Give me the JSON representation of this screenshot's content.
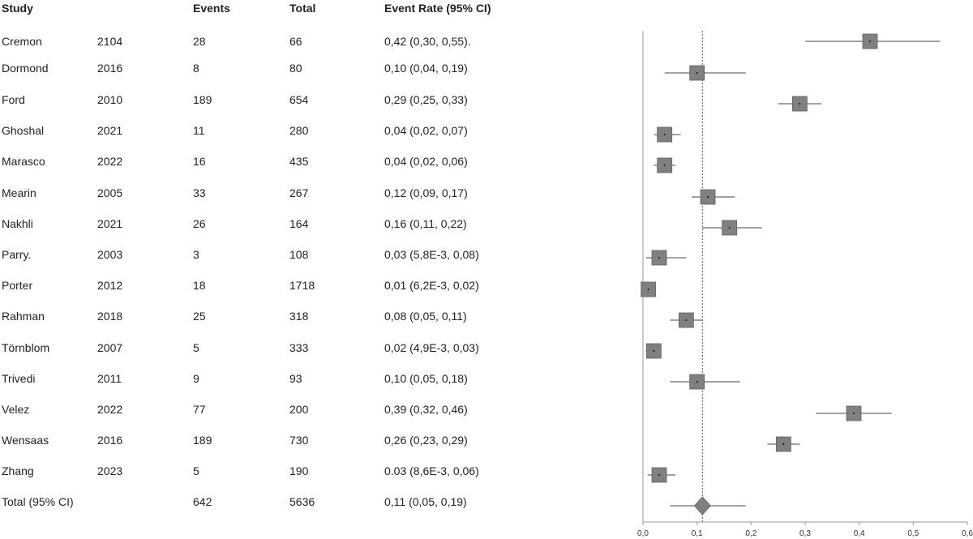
{
  "headers": {
    "study": "Study",
    "events": "Events",
    "total": "Total",
    "ci": "Event Rate (95% CI)"
  },
  "rows": [
    {
      "study": "Cremon",
      "year": "2104",
      "events": "28",
      "total": "66",
      "ci": "0,42 (0,30, 0,55)."
    },
    {
      "study": "Dormond",
      "year": "2016",
      "events": "8",
      "total": "80",
      "ci": "0,10 (0,04, 0,19)"
    },
    {
      "study": "Ford",
      "year": "2010",
      "events": "189",
      "total": "654",
      "ci": "0,29 (0,25, 0,33)"
    },
    {
      "study": "Ghoshal",
      "year": "2021",
      "events": "11",
      "total": "280",
      "ci": "0,04 (0,02, 0,07)"
    },
    {
      "study": "Marasco",
      "year": "2022",
      "events": "16",
      "total": "435",
      "ci": "0,04 (0,02, 0,06)"
    },
    {
      "study": "Mearin",
      "year": "2005",
      "events": "33",
      "total": "267",
      "ci": "0,12 (0,09, 0,17)"
    },
    {
      "study": "Nakhli",
      "year": "2021",
      "events": "26",
      "total": "164",
      "ci": "0,16 (0,11, 0,22)"
    },
    {
      "study": "Parry.",
      "year": "2003",
      "events": "3",
      "total": "108",
      "ci": "0,03 (5,8E-3, 0,08)"
    },
    {
      "study": "Porter",
      "year": "2012",
      "events": "18",
      "total": "1718",
      "ci": "0,01 (6,2E-3, 0,02)"
    },
    {
      "study": "Rahman",
      "year": "2018",
      "events": "25",
      "total": "318",
      "ci": "0,08 (0,05, 0,11)"
    },
    {
      "study": "Törnblom",
      "year": "2007",
      "events": "5",
      "total": "333",
      "ci": "0,02 (4,9E-3, 0,03)"
    },
    {
      "study": "Trivedi",
      "year": "2011",
      "events": "9",
      "total": "93",
      "ci": "0,10 (0,05, 0,18)"
    },
    {
      "study": "Velez",
      "year": "2022",
      "events": "77",
      "total": "200",
      "ci": "0,39 (0,32, 0,46)"
    },
    {
      "study": "Wensaas",
      "year": "2016",
      "events": "189",
      "total": "730",
      "ci": "0,26 (0,23, 0,29)"
    },
    {
      "study": "Zhang",
      "year": "2023",
      "events": "5",
      "total": "190",
      "ci": "0.03 (8,6E-3, 0,06)"
    }
  ],
  "total_row": {
    "study": "Total (95% CI)",
    "events": "642",
    "total": "5636",
    "ci": "0,11 (0,05, 0,19)"
  },
  "chart_data": {
    "type": "forest",
    "xlim": [
      0,
      0.6
    ],
    "x_ticks": [
      "0,0",
      "0,1",
      "0,2",
      "0,3",
      "0,4",
      "0,5",
      "0,6"
    ],
    "x_tick_values": [
      0,
      0.1,
      0.2,
      0.3,
      0.4,
      0.5,
      0.6
    ],
    "reference_line": 0.11,
    "studies": [
      {
        "est": 0.42,
        "lo": 0.3,
        "hi": 0.55
      },
      {
        "est": 0.1,
        "lo": 0.04,
        "hi": 0.19
      },
      {
        "est": 0.29,
        "lo": 0.25,
        "hi": 0.33
      },
      {
        "est": 0.04,
        "lo": 0.02,
        "hi": 0.07
      },
      {
        "est": 0.04,
        "lo": 0.02,
        "hi": 0.06
      },
      {
        "est": 0.12,
        "lo": 0.09,
        "hi": 0.17
      },
      {
        "est": 0.16,
        "lo": 0.11,
        "hi": 0.22
      },
      {
        "est": 0.03,
        "lo": 0.0058,
        "hi": 0.08
      },
      {
        "est": 0.01,
        "lo": 0.0062,
        "hi": 0.02
      },
      {
        "est": 0.08,
        "lo": 0.05,
        "hi": 0.11
      },
      {
        "est": 0.02,
        "lo": 0.0049,
        "hi": 0.03
      },
      {
        "est": 0.1,
        "lo": 0.05,
        "hi": 0.18
      },
      {
        "est": 0.39,
        "lo": 0.32,
        "hi": 0.46
      },
      {
        "est": 0.26,
        "lo": 0.23,
        "hi": 0.29
      },
      {
        "est": 0.03,
        "lo": 0.0086,
        "hi": 0.06
      }
    ],
    "pooled": {
      "est": 0.11,
      "lo": 0.05,
      "hi": 0.19
    },
    "colors": {
      "marker": "#808080",
      "marker_edge": "#606060",
      "line": "#6a6a6a",
      "axis": "#999999"
    }
  }
}
